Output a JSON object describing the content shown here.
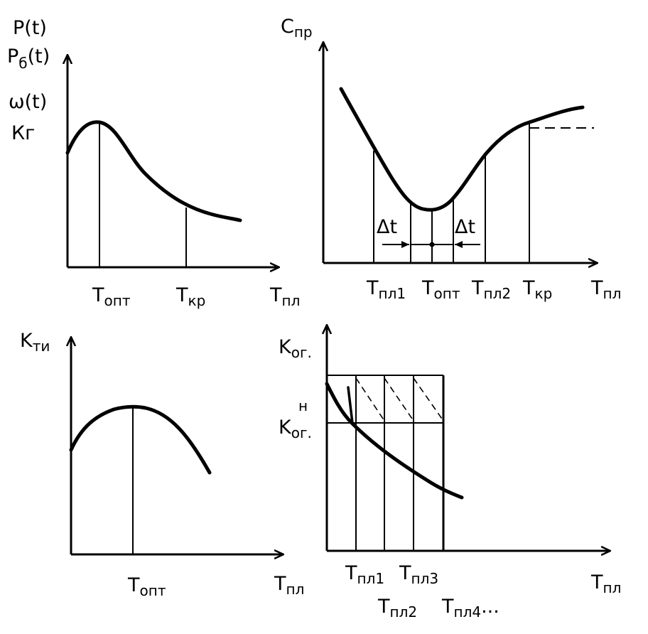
{
  "panels": {
    "top_left": {
      "y_labels": [
        {
          "main": "P(t)",
          "sub": ""
        },
        {
          "main": "P",
          "sub": "б",
          "tail": "(t)"
        },
        {
          "main": "ω(t)",
          "sub": ""
        },
        {
          "main": "Кг",
          "sub": ""
        }
      ],
      "x_ticks": [
        {
          "main": "T",
          "sub": "опт"
        },
        {
          "main": "T",
          "sub": "кр"
        }
      ],
      "x_label": {
        "main": "T",
        "sub": "пл"
      }
    },
    "top_right": {
      "y_label": {
        "main": "C",
        "sub": "пр"
      },
      "delta_label": "Δt",
      "x_ticks": [
        {
          "main": "T",
          "sub": "пл1"
        },
        {
          "main": "T",
          "sub": "опт"
        },
        {
          "main": "T",
          "sub": "пл2"
        },
        {
          "main": "T",
          "sub": "кр"
        }
      ],
      "x_label": {
        "main": "T",
        "sub": "пл"
      }
    },
    "bottom_left": {
      "y_label": {
        "main": "K",
        "sub": "ти"
      },
      "x_ticks": [
        {
          "main": "T",
          "sub": "опт"
        }
      ],
      "x_label": {
        "main": "T",
        "sub": "пл"
      }
    },
    "bottom_right": {
      "y_label": {
        "main": "K",
        "sub": "ог."
      },
      "y_tick": {
        "main": "K",
        "sub": "ог.",
        "sup": "н"
      },
      "x_ticks_row1": [
        {
          "main": "T",
          "sub": "пл1"
        },
        {
          "main": "T",
          "sub": "пл3"
        }
      ],
      "x_ticks_row2": [
        {
          "main": "T",
          "sub": "пл2"
        },
        {
          "main": "T",
          "sub": "пл4",
          "tail": "..."
        }
      ],
      "x_label": {
        "main": "T",
        "sub": "пл"
      }
    }
  }
}
